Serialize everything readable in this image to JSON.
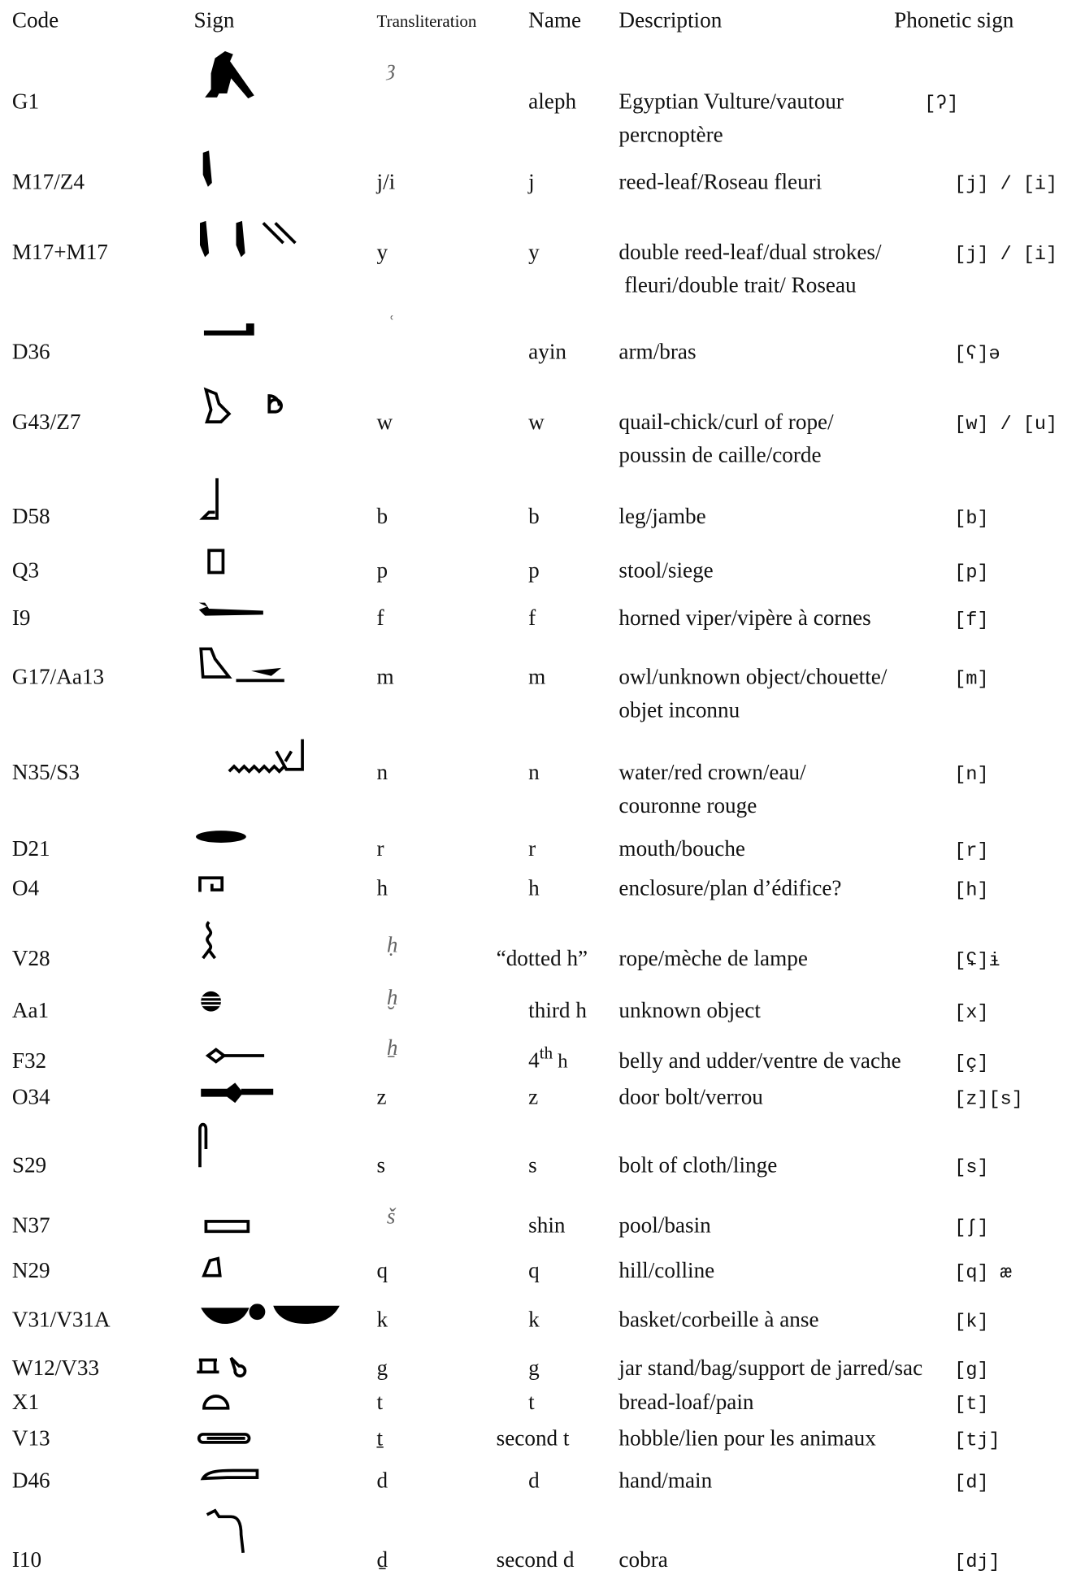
{
  "header": {
    "code": "Code",
    "sign": "Sign",
    "transliteration": "Transliteration",
    "name": "Name",
    "description": "Description",
    "phonetic": "Phonetic sign"
  },
  "rows": [
    {
      "code": "G1",
      "translit": "ȝ",
      "name": "aleph",
      "description": [
        "Egyptian Vulture/vautour",
        "percnoptère"
      ],
      "phonetic": "[ʔ]"
    },
    {
      "code": "M17/Z4",
      "translit": "j/i",
      "name": "j",
      "description": [
        "reed-leaf/Roseau fleuri"
      ],
      "phonetic": "[j] / [i]"
    },
    {
      "code": "M17+M17",
      "translit": "y",
      "name": "y",
      "description": [
        "double reed-leaf/dual strokes/",
        " fleuri/double trait/ Roseau"
      ],
      "phonetic": "[j] / [i]"
    },
    {
      "code": "D36",
      "translit": "ʿ",
      "name": "ayin",
      "description": [
        "arm/bras"
      ],
      "phonetic": "[ʕ]ə"
    },
    {
      "code": "G43/Z7",
      "translit": "w",
      "name": "w",
      "description": [
        "quail-chick/curl of rope/",
        "poussin de caille/corde"
      ],
      "phonetic": "[w] / [u]"
    },
    {
      "code": "D58",
      "translit": "b",
      "name": "b",
      "description": [
        "leg/jambe"
      ],
      "phonetic": "[b]"
    },
    {
      "code": "Q3",
      "translit": "p",
      "name": "p",
      "description": [
        "stool/siege"
      ],
      "phonetic": "[p]"
    },
    {
      "code": "I9",
      "translit": "f",
      "name": "f",
      "description": [
        "horned viper/vipère à cornes"
      ],
      "phonetic": "[f]"
    },
    {
      "code": "G17/Aa13",
      "translit": "m",
      "name": "m",
      "description": [
        "owl/unknown object/chouette/",
        "objet inconnu"
      ],
      "phonetic": "[m]"
    },
    {
      "code": "N35/S3",
      "translit": "n",
      "name": "n",
      "description": [
        "water/red crown/eau/",
        "couronne rouge"
      ],
      "phonetic": "[n]"
    },
    {
      "code": "D21",
      "translit": "r",
      "name": "r",
      "description": [
        "mouth/bouche"
      ],
      "phonetic": "[r]"
    },
    {
      "code": "O4",
      "translit": "h",
      "name": "h",
      "description": [
        "enclosure/plan d’édifice?"
      ],
      "phonetic": "[h]"
    },
    {
      "code": "V28",
      "translit": "ḥ",
      "name": "“dotted h”",
      "description": [
        "rope/mèche de lampe"
      ],
      "phonetic": "[ʢ]ɨ"
    },
    {
      "code": "Aa1",
      "translit": "ḫ",
      "name": "third h",
      "description": [
        "unknown object"
      ],
      "phonetic": "[x]"
    },
    {
      "code": "F32",
      "translit": "ẖ",
      "name": "4",
      "name_sup": "th",
      "name_after": " h",
      "description": [
        "belly and udder/ventre de vache"
      ],
      "phonetic": "[ç]"
    },
    {
      "code": "O34",
      "translit": "z",
      "name": "z",
      "description": [
        "door bolt/verrou"
      ],
      "phonetic": "[z][s]"
    },
    {
      "code": "S29",
      "translit": "s",
      "name": "s",
      "description": [
        "bolt of cloth/linge"
      ],
      "phonetic": "[s]"
    },
    {
      "code": "N37",
      "translit": "š",
      "name": "shin",
      "description": [
        "pool/basin"
      ],
      "phonetic": "[ʃ]"
    },
    {
      "code": "N29",
      "translit": "q",
      "name": "q",
      "description": [
        "hill/colline"
      ],
      "phonetic": "[q] æ"
    },
    {
      "code": "V31/V31A",
      "translit": "k",
      "name": "k",
      "description": [
        "basket/corbeille à anse"
      ],
      "phonetic": "[k]"
    },
    {
      "code": "W12/V33",
      "translit": "g",
      "name": "g",
      "description": [
        "jar stand/bag/support de jarred/sac"
      ],
      "phonetic": "[g]"
    },
    {
      "code": "X1",
      "translit": "t",
      "name": "t",
      "description": [
        "bread-loaf/pain"
      ],
      "phonetic": "[t]"
    },
    {
      "code": "V13",
      "translit": "ṯ",
      "name": "second t",
      "description": [
        "hobble/lien pour les animaux"
      ],
      "phonetic": "[tj]"
    },
    {
      "code": "D46",
      "translit": "d",
      "name": "d",
      "description": [
        "hand/main"
      ],
      "phonetic": "[d]"
    },
    {
      "code": "I10",
      "translit": "ḏ",
      "name": "second d",
      "description": [
        "cobra"
      ],
      "phonetic": "[dj]"
    }
  ]
}
